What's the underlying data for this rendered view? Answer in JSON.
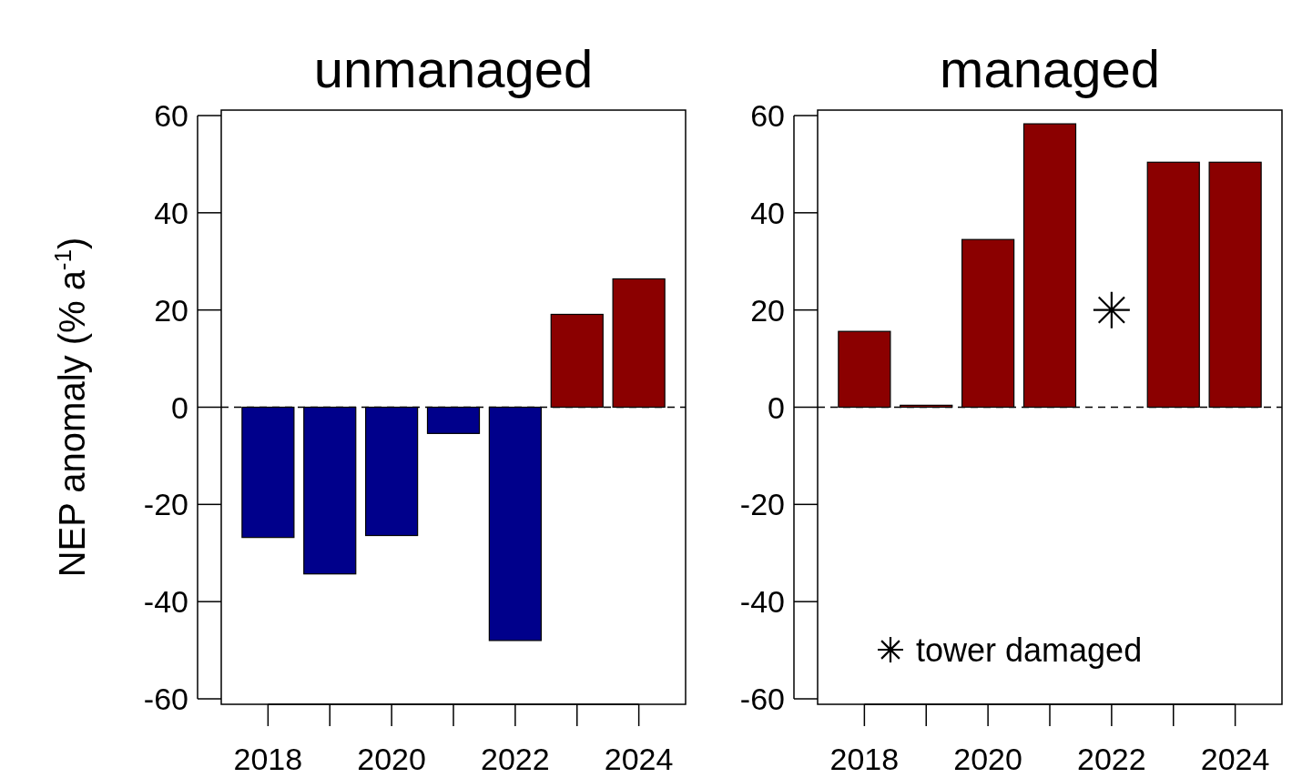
{
  "chart_data": [
    {
      "type": "bar",
      "title": "unmanaged",
      "ylabel": "NEP anomaly (% a$^{-1}$)",
      "categories": [
        "2018",
        null,
        "2020",
        null,
        "2022",
        null,
        "2024"
      ],
      "series": [
        {
          "colors": [
            "#00008b",
            "#00008b",
            "#00008b",
            "#00008b",
            "#00008b",
            "#8b0000",
            "#8b0000"
          ],
          "values": [
            -26.8,
            -34.3,
            -26.4,
            -5.4,
            -48,
            19.1,
            26.4
          ]
        }
      ],
      "ylim": [
        -60,
        60
      ],
      "yticks": [
        -60,
        -40,
        -20,
        0,
        20,
        40,
        60
      ],
      "ref_lines": [
        {
          "axis": "y",
          "value": 0,
          "line_style": "dashed",
          "color": "#000000"
        }
      ]
    },
    {
      "type": "bar",
      "title": "managed",
      "categories": [
        "2018",
        null,
        "2020",
        null,
        "2022",
        null,
        "2024"
      ],
      "series": [
        {
          "colors": [
            "#8b0000",
            "#8b0000",
            "#8b0000",
            "#8b0000",
            null,
            "#8b0000",
            "#8b0000"
          ],
          "values": [
            15.6,
            0.4,
            34.5,
            58.3,
            null,
            50.4,
            50.4
          ]
        },
        {
          "type": "scatter",
          "name": "tower damaged",
          "values": [
            null,
            null,
            null,
            null,
            20,
            null,
            null
          ],
          "marker": "cross",
          "color": "#000000"
        }
      ],
      "ylim": [
        -60,
        60
      ],
      "yticks": [
        -60,
        -40,
        -20,
        0,
        20,
        40,
        60
      ],
      "legend": "bottom left",
      "ref_lines": [
        {
          "axis": "y",
          "value": 0,
          "line_style": "dashed",
          "color": "#000000"
        }
      ]
    }
  ]
}
